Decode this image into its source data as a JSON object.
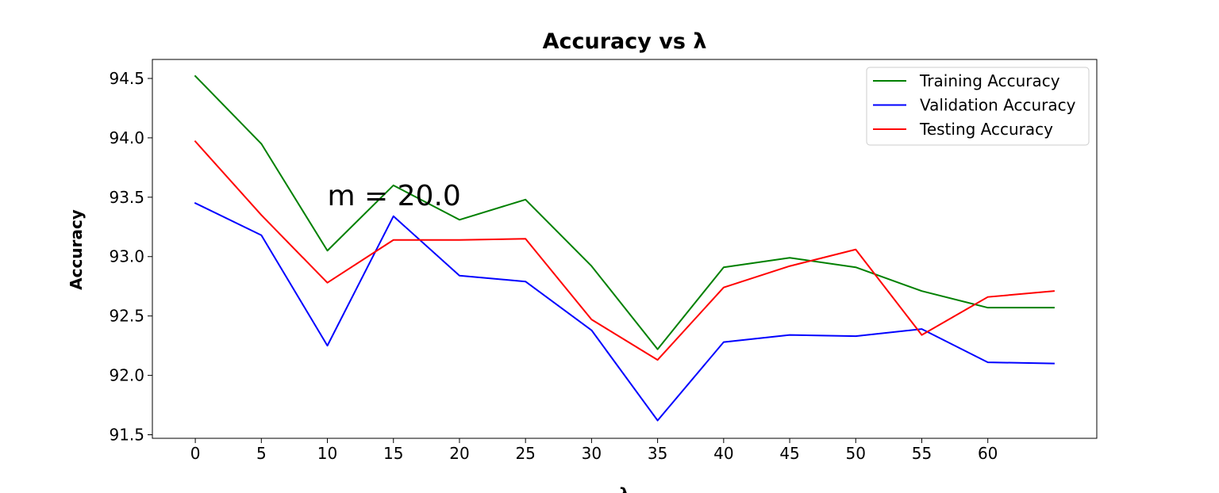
{
  "chart_data": {
    "type": "line",
    "title": "Accuracy vs λ",
    "xlabel": "λ",
    "ylabel": "Accuracy",
    "x": [
      0,
      5,
      10,
      15,
      20,
      25,
      30,
      35,
      40,
      45,
      50,
      55,
      60,
      65
    ],
    "xticks": [
      "0",
      "5",
      "10",
      "15",
      "20",
      "25",
      "30",
      "35",
      "40",
      "45",
      "50",
      "55",
      "60"
    ],
    "xlim": [
      -3.25,
      68.25
    ],
    "yticks": [
      "91.5",
      "92.0",
      "92.5",
      "93.0",
      "93.5",
      "94.0",
      "94.5"
    ],
    "ylim": [
      91.47,
      94.66
    ],
    "series": [
      {
        "name": "Training Accuracy",
        "color": "#008000",
        "values": [
          94.52,
          93.95,
          93.05,
          93.6,
          93.31,
          93.48,
          92.92,
          92.22,
          92.91,
          92.99,
          92.91,
          92.71,
          92.57,
          92.57
        ]
      },
      {
        "name": "Validation Accuracy",
        "color": "#0000ff",
        "values": [
          93.45,
          93.18,
          92.25,
          93.34,
          92.84,
          92.79,
          92.38,
          91.62,
          92.28,
          92.34,
          92.33,
          92.39,
          92.11,
          92.1
        ]
      },
      {
        "name": "Testing Accuracy",
        "color": "#ff0000",
        "values": [
          93.97,
          93.35,
          92.78,
          93.14,
          93.14,
          93.15,
          92.47,
          92.13,
          92.74,
          92.92,
          93.06,
          92.34,
          92.66,
          92.71
        ]
      }
    ],
    "annotation": {
      "text": "m = 20.0",
      "x": 10,
      "y": 93.52
    },
    "legend": "top-right",
    "grid": false
  }
}
